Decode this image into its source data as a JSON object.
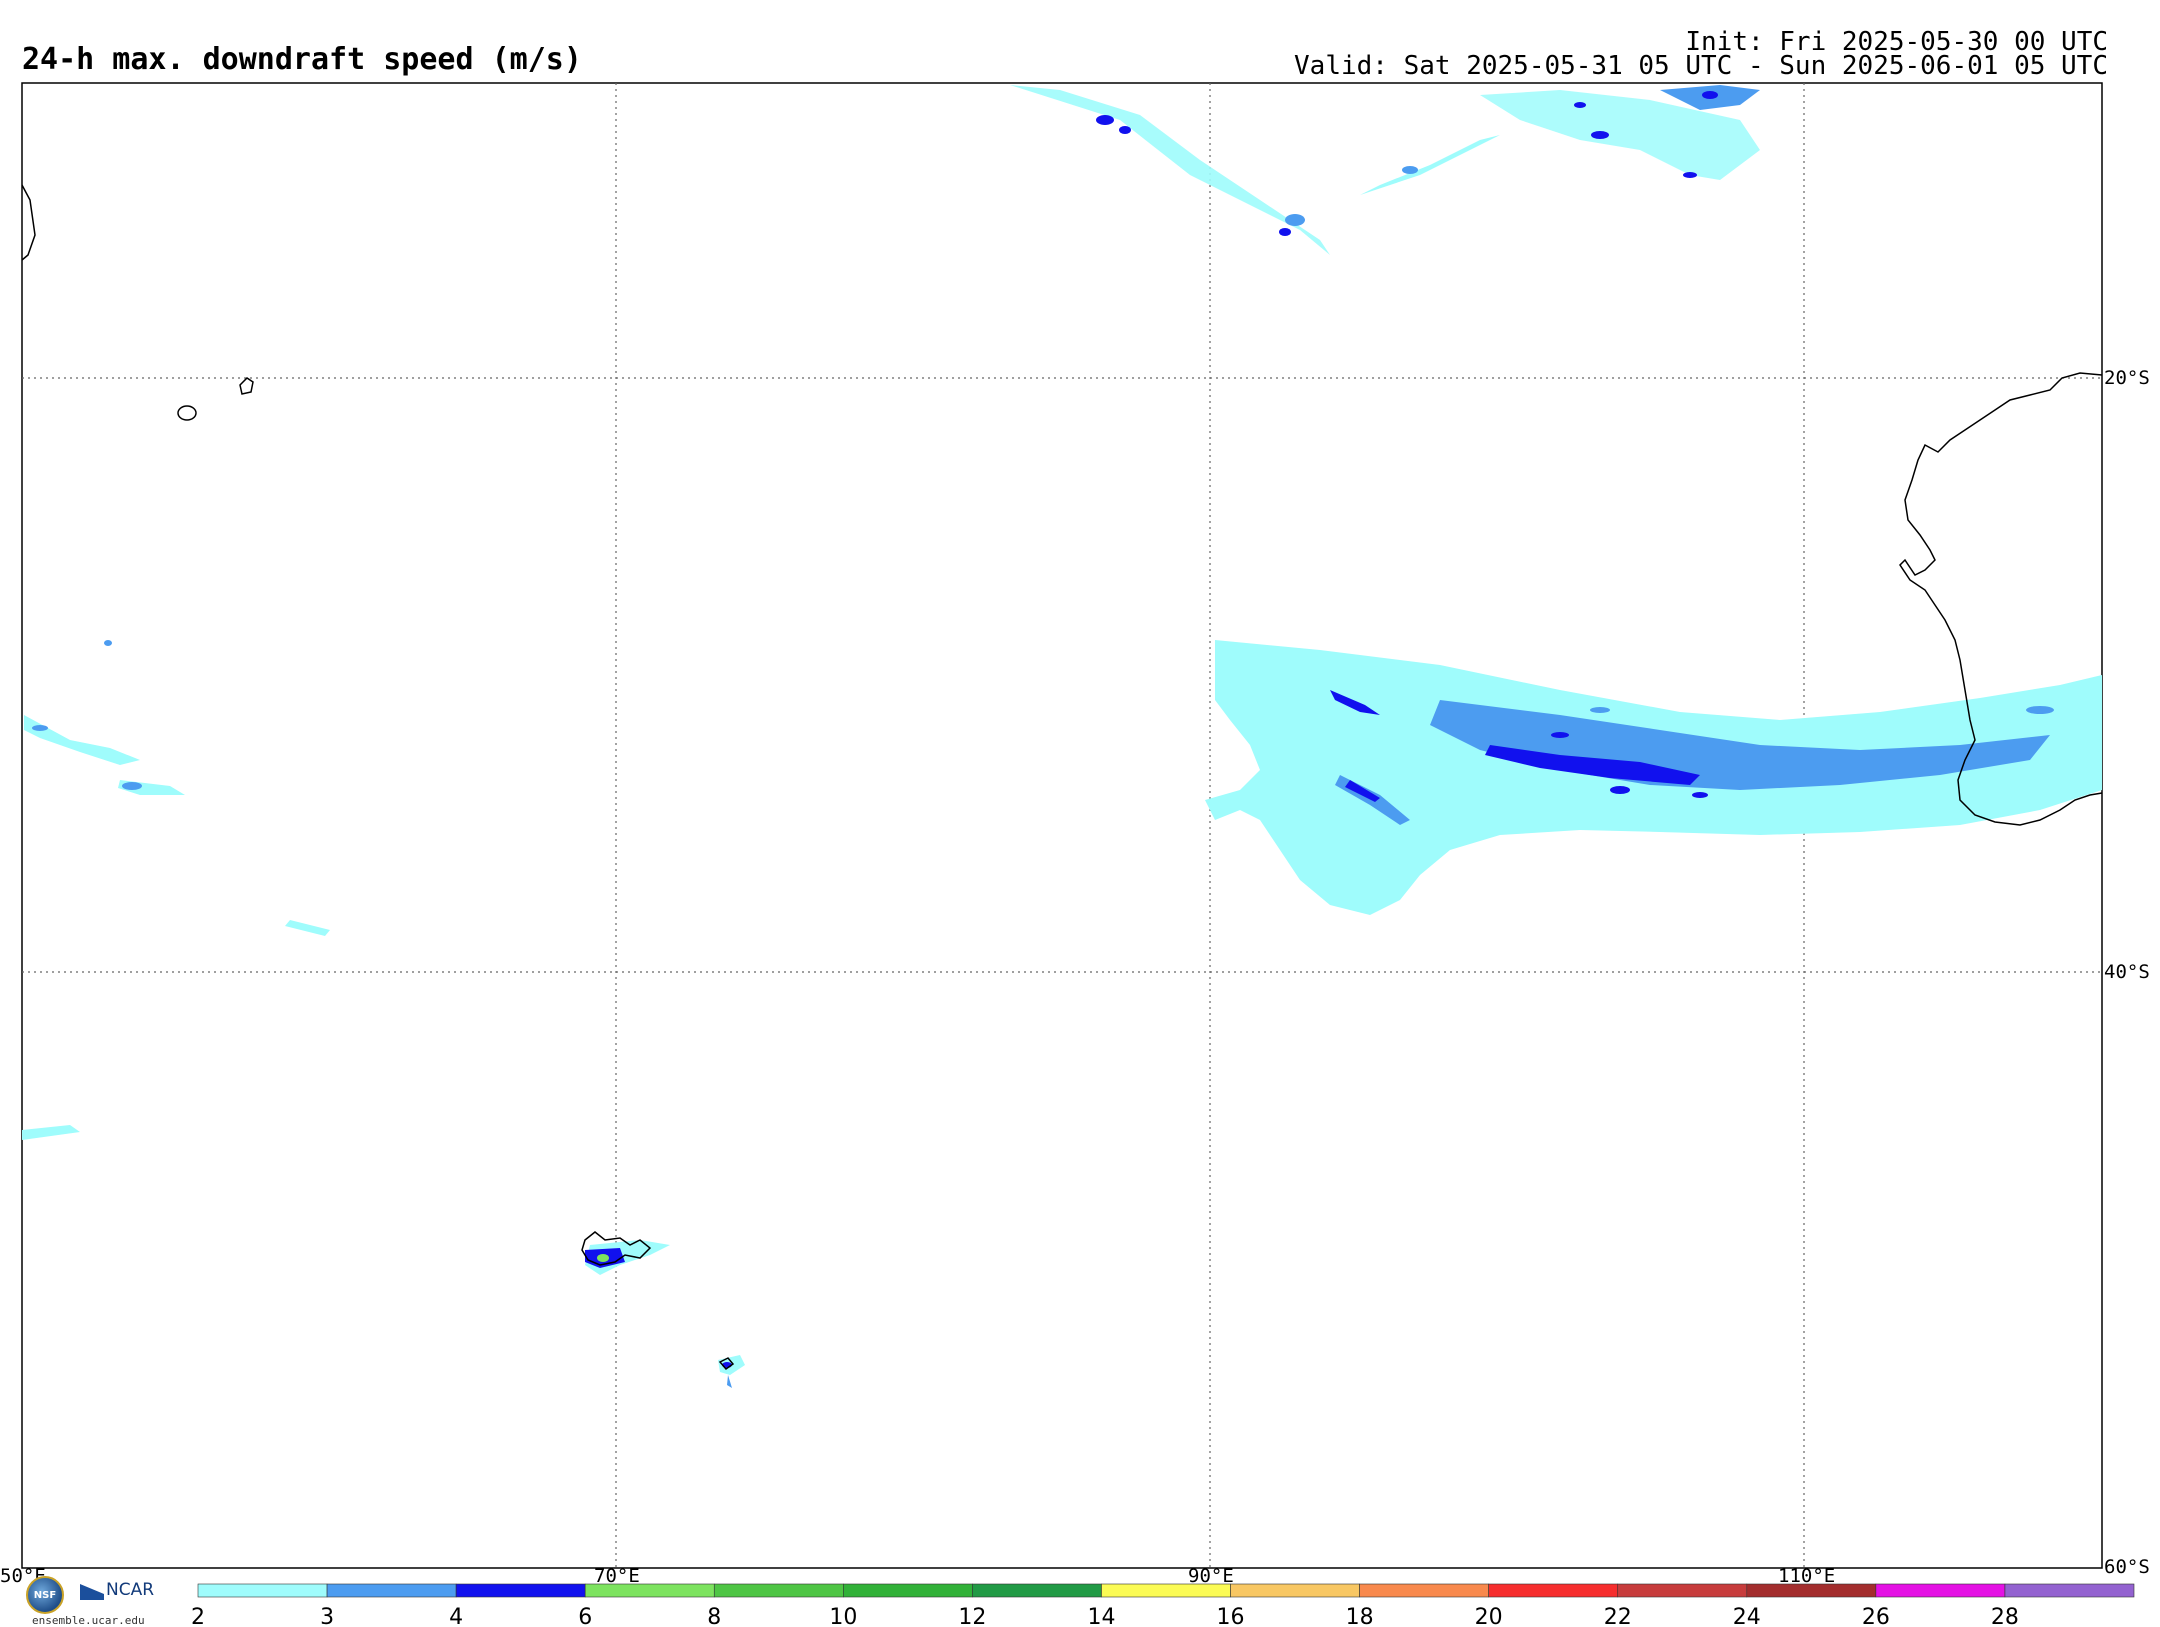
{
  "title": "24-h max. downdraft speed (m/s)",
  "init_text": "Init: Fri 2025-05-30 00 UTC",
  "valid_text": "Valid: Sat 2025-05-31 05 UTC - Sun 2025-06-01 05 UTC",
  "map": {
    "lon_range": [
      50,
      120
    ],
    "lat_range": [
      -60,
      -10
    ],
    "lon_labels": [
      "50°E",
      "70°E",
      "90°E",
      "110°E"
    ],
    "lat_labels": [
      "20°S",
      "40°S",
      "60°S"
    ],
    "gridlines": "dotted",
    "coastlines": [
      "Australia (Western Australia)",
      "Madagascar (edge)",
      "Réunion",
      "Mauritius",
      "Kerguelen Islands",
      "Heard Island"
    ]
  },
  "colorbar": {
    "ticks": [
      "2",
      "3",
      "4",
      "6",
      "8",
      "10",
      "12",
      "14",
      "16",
      "18",
      "20",
      "22",
      "24",
      "26",
      "28"
    ],
    "colors": [
      "#9ffcfc",
      "#4c9cf0",
      "#1111ee",
      "#7de35f",
      "#4ec544",
      "#31b138",
      "#219a45",
      "#fbfb55",
      "#f8c763",
      "#f8894d",
      "#f62d2d",
      "#c73c3c",
      "#a32d2d",
      "#e411e4",
      "#9362d0"
    ]
  },
  "logos": {
    "nsf_text": "NSF",
    "ncar_text": "NCAR",
    "site_text": "ensemble.ucar.edu"
  }
}
